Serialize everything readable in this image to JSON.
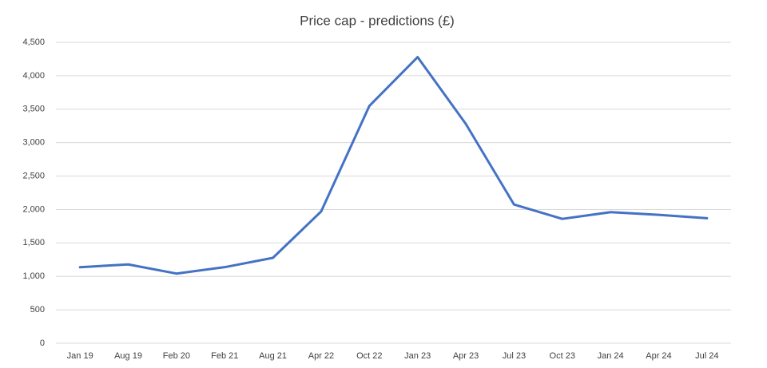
{
  "chart_data": {
    "type": "line",
    "title": "Price cap - predictions (£)",
    "categories": [
      "Jan 19",
      "Aug 19",
      "Feb 20",
      "Feb 21",
      "Aug 21",
      "Apr 22",
      "Oct 22",
      "Jan 23",
      "Apr 23",
      "Jul 23",
      "Oct 23",
      "Jan 24",
      "Apr 24",
      "Jul 24"
    ],
    "series": [
      {
        "name": "Price cap",
        "color": "#4472c4",
        "values": [
          1137,
          1179,
          1042,
          1138,
          1277,
          1971,
          3549,
          4279,
          3280,
          2074,
          1860,
          1960,
          1920,
          1870
        ]
      }
    ],
    "ylim": [
      0,
      4500
    ],
    "yticks": [
      0,
      500,
      {
        "value": 1000,
        "label": "1,000"
      },
      {
        "value": 1500,
        "label": "1,500"
      },
      {
        "value": 2000,
        "label": "2,000"
      },
      {
        "value": 2500,
        "label": "2,500"
      },
      {
        "value": 3000,
        "label": "3,000"
      },
      {
        "value": 3500,
        "label": "3,500"
      },
      {
        "value": 4000,
        "label": "4,000"
      },
      {
        "value": 4500,
        "label": "4,500"
      }
    ],
    "grid": true
  }
}
